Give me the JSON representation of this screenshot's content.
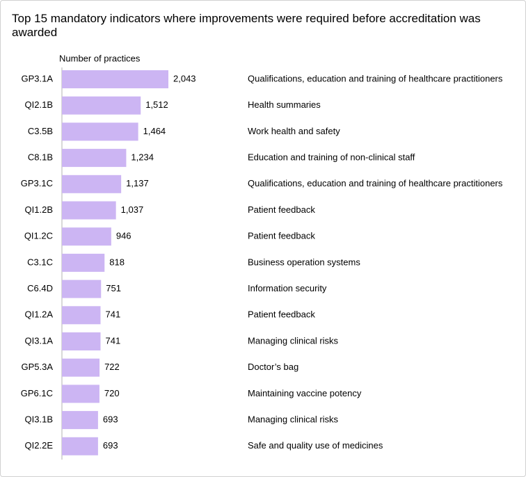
{
  "chart_data": {
    "type": "bar",
    "orientation": "horizontal",
    "title": "Top 15 mandatory indicators where improvements were required before accreditation was awarded",
    "x_label": "Number of practices",
    "categories": [
      "GP3.1A",
      "QI2.1B",
      "C3.5B",
      "C8.1B",
      "GP3.1C",
      "QI1.2B",
      "QI1.2C",
      "C3.1C",
      "C6.4D",
      "QI1.2A",
      "QI3.1A",
      "GP5.3A",
      "GP6.1C",
      "QI3.1B",
      "QI2.2E"
    ],
    "descriptions": [
      "Qualifications, education and training of healthcare practitioners",
      "Health summaries",
      "Work health and safety",
      "Education and training of non-clinical staff",
      "Qualifications, education and training of healthcare practitioners",
      "Patient feedback",
      "Patient feedback",
      "Business operation systems",
      "Information security",
      "Patient feedback",
      "Managing clinical risks",
      "Doctor’s bag",
      "Maintaining vaccine potency",
      "Managing clinical risks",
      "Safe and quality use of medicines"
    ],
    "values": [
      2043,
      1512,
      1464,
      1234,
      1137,
      1037,
      946,
      818,
      751,
      741,
      741,
      722,
      720,
      693,
      693
    ],
    "value_labels": [
      "2,043",
      "1,512",
      "1,464",
      "1,234",
      "1,137",
      "1,037",
      "946",
      "818",
      "751",
      "741",
      "741",
      "722",
      "720",
      "693",
      "693"
    ],
    "color": "#ccb5f3"
  }
}
